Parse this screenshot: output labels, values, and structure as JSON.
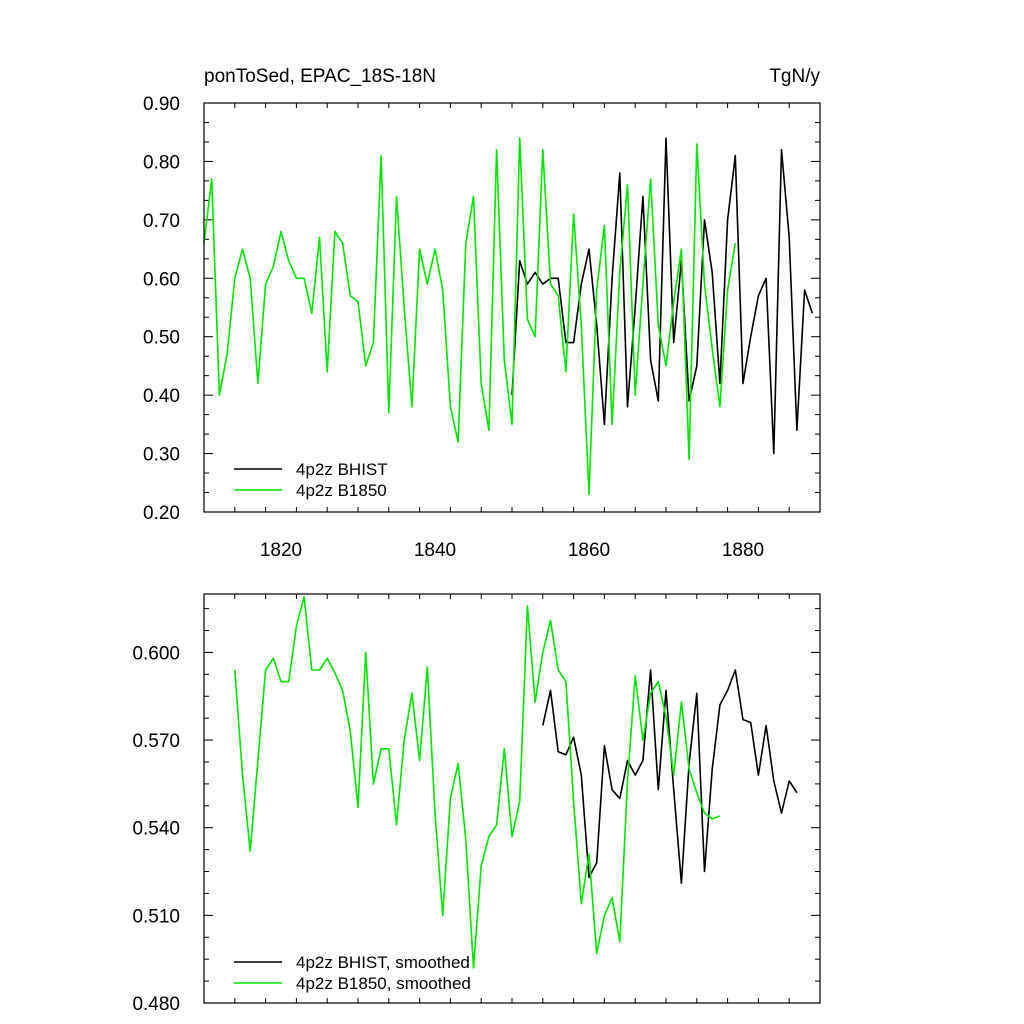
{
  "chart_data": [
    {
      "type": "line",
      "title_left": "ponToSed, EPAC_18S-18N",
      "title_right": "TgN/y",
      "xlim": [
        1810,
        1890
      ],
      "ylim": [
        0.2,
        0.9
      ],
      "x_ticks": [
        1820,
        1840,
        1860,
        1880
      ],
      "x_tick_labels": [
        "1820",
        "1840",
        "1860",
        "1880"
      ],
      "y_ticks": [
        0.2,
        0.3,
        0.4,
        0.5,
        0.6,
        0.7,
        0.8,
        0.9
      ],
      "y_tick_labels": [
        "0.20",
        "0.30",
        "0.40",
        "0.50",
        "0.60",
        "0.70",
        "0.80",
        "0.90"
      ],
      "legend_position": "bottom-left",
      "series": [
        {
          "name": "4p2z BHIST",
          "color": "#000000",
          "x": [
            1850,
            1851,
            1852,
            1853,
            1854,
            1855,
            1856,
            1857,
            1858,
            1859,
            1860,
            1861,
            1862,
            1863,
            1864,
            1865,
            1866,
            1867,
            1868,
            1869,
            1870,
            1871,
            1872,
            1873,
            1874,
            1875,
            1876,
            1877,
            1878,
            1879,
            1880,
            1881,
            1882,
            1883,
            1884,
            1885,
            1886,
            1887,
            1888,
            1889
          ],
          "y": [
            0.4,
            0.63,
            0.59,
            0.61,
            0.59,
            0.6,
            0.6,
            0.49,
            0.49,
            0.59,
            0.65,
            0.52,
            0.35,
            0.6,
            0.78,
            0.38,
            0.55,
            0.74,
            0.46,
            0.39,
            0.84,
            0.49,
            0.63,
            0.39,
            0.45,
            0.7,
            0.61,
            0.42,
            0.7,
            0.81,
            0.42,
            0.5,
            0.57,
            0.6,
            0.3,
            0.82,
            0.67,
            0.34,
            0.58,
            0.54
          ]
        },
        {
          "name": "4p2z B1850",
          "color": "#00e600",
          "x": [
            1810,
            1811,
            1812,
            1813,
            1814,
            1815,
            1816,
            1817,
            1818,
            1819,
            1820,
            1821,
            1822,
            1823,
            1824,
            1825,
            1826,
            1827,
            1828,
            1829,
            1830,
            1831,
            1832,
            1833,
            1834,
            1835,
            1836,
            1837,
            1838,
            1839,
            1840,
            1841,
            1842,
            1843,
            1844,
            1845,
            1846,
            1847,
            1848,
            1849,
            1850,
            1851,
            1852,
            1853,
            1854,
            1855,
            1856,
            1857,
            1858,
            1859,
            1860,
            1861,
            1862,
            1863,
            1864,
            1865,
            1866,
            1867,
            1868,
            1869,
            1870,
            1871,
            1872,
            1873,
            1874,
            1875,
            1876,
            1877,
            1878,
            1879
          ],
          "y": [
            0.66,
            0.77,
            0.4,
            0.47,
            0.6,
            0.65,
            0.6,
            0.42,
            0.59,
            0.62,
            0.68,
            0.63,
            0.6,
            0.6,
            0.54,
            0.67,
            0.44,
            0.68,
            0.66,
            0.57,
            0.56,
            0.45,
            0.49,
            0.81,
            0.37,
            0.74,
            0.55,
            0.38,
            0.65,
            0.59,
            0.65,
            0.58,
            0.38,
            0.32,
            0.66,
            0.74,
            0.42,
            0.34,
            0.82,
            0.46,
            0.35,
            0.84,
            0.53,
            0.5,
            0.82,
            0.59,
            0.57,
            0.44,
            0.71,
            0.52,
            0.23,
            0.58,
            0.69,
            0.35,
            0.61,
            0.76,
            0.4,
            0.59,
            0.77,
            0.52,
            0.45,
            0.56,
            0.65,
            0.29,
            0.83,
            0.59,
            0.48,
            0.38,
            0.58,
            0.66
          ]
        }
      ]
    },
    {
      "type": "line",
      "xlim": [
        1810,
        1890
      ],
      "ylim": [
        0.48,
        0.62
      ],
      "x_ticks": [
        1820,
        1840,
        1860,
        1880
      ],
      "y_ticks": [
        0.48,
        0.51,
        0.54,
        0.57,
        0.6
      ],
      "y_tick_labels": [
        "0.480",
        "0.510",
        "0.540",
        "0.570",
        "0.600"
      ],
      "legend_position": "bottom-left",
      "series": [
        {
          "name": "4p2z BHIST, smoothed",
          "color": "#000000",
          "x": [
            1854,
            1855,
            1856,
            1857,
            1858,
            1859,
            1860,
            1861,
            1862,
            1863,
            1864,
            1865,
            1866,
            1867,
            1868,
            1869,
            1870,
            1871,
            1872,
            1873,
            1874,
            1875,
            1876,
            1877,
            1878,
            1879,
            1880,
            1881,
            1882,
            1883,
            1884,
            1885,
            1886,
            1887
          ],
          "y": [
            0.575,
            0.587,
            0.566,
            0.565,
            0.571,
            0.558,
            0.523,
            0.528,
            0.568,
            0.553,
            0.55,
            0.563,
            0.558,
            0.563,
            0.594,
            0.553,
            0.587,
            0.553,
            0.521,
            0.562,
            0.586,
            0.525,
            0.56,
            0.582,
            0.587,
            0.594,
            0.577,
            0.576,
            0.558,
            0.575,
            0.556,
            0.545,
            0.556,
            0.552
          ]
        },
        {
          "name": "4p2z B1850, smoothed",
          "color": "#00e600",
          "x": [
            1814,
            1815,
            1816,
            1817,
            1818,
            1819,
            1820,
            1821,
            1822,
            1823,
            1824,
            1825,
            1826,
            1827,
            1828,
            1829,
            1830,
            1831,
            1832,
            1833,
            1834,
            1835,
            1836,
            1837,
            1838,
            1839,
            1840,
            1841,
            1842,
            1843,
            1844,
            1845,
            1846,
            1847,
            1848,
            1849,
            1850,
            1851,
            1852,
            1853,
            1854,
            1855,
            1856,
            1857,
            1858,
            1859,
            1860,
            1861,
            1862,
            1863,
            1864,
            1865,
            1866,
            1867,
            1868,
            1869,
            1870,
            1871,
            1872,
            1873,
            1874,
            1875,
            1876,
            1877
          ],
          "y": [
            0.594,
            0.558,
            0.532,
            0.563,
            0.594,
            0.598,
            0.59,
            0.59,
            0.609,
            0.619,
            0.594,
            0.594,
            0.598,
            0.593,
            0.587,
            0.573,
            0.547,
            0.6,
            0.555,
            0.567,
            0.567,
            0.541,
            0.57,
            0.586,
            0.563,
            0.595,
            0.545,
            0.51,
            0.55,
            0.562,
            0.536,
            0.492,
            0.527,
            0.537,
            0.541,
            0.567,
            0.537,
            0.549,
            0.616,
            0.583,
            0.6,
            0.611,
            0.594,
            0.59,
            0.549,
            0.514,
            0.531,
            0.497,
            0.51,
            0.516,
            0.501,
            0.556,
            0.592,
            0.57,
            0.586,
            0.59,
            0.578,
            0.558,
            0.583,
            0.56,
            0.552,
            0.545,
            0.543,
            0.544
          ]
        }
      ]
    }
  ]
}
